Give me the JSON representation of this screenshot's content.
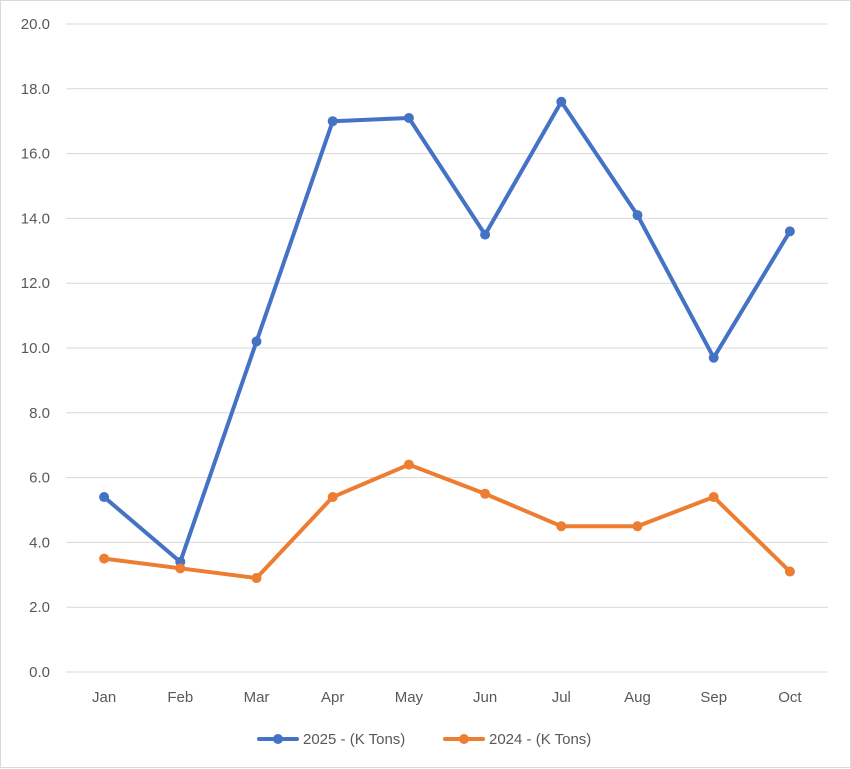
{
  "chart_data": {
    "type": "line",
    "title": "",
    "xlabel": "",
    "ylabel": "",
    "categories": [
      "Jan",
      "Feb",
      "Mar",
      "Apr",
      "May",
      "Jun",
      "Jul",
      "Aug",
      "Sep",
      "Oct"
    ],
    "series": [
      {
        "name": "2025 - (K Tons)",
        "color": "#4472c4",
        "values": [
          5.4,
          3.4,
          10.2,
          17.0,
          17.1,
          13.5,
          17.6,
          14.1,
          9.7,
          13.6
        ]
      },
      {
        "name": "2024 - (K Tons)",
        "color": "#ed7d31",
        "values": [
          3.5,
          3.2,
          2.9,
          5.4,
          6.4,
          5.5,
          4.5,
          4.5,
          5.4,
          3.1
        ]
      }
    ],
    "ylim": [
      0,
      20
    ],
    "y_ticks": [
      "0.0",
      "2.0",
      "4.0",
      "6.0",
      "8.0",
      "10.0",
      "12.0",
      "14.0",
      "16.0",
      "18.0",
      "20.0"
    ],
    "grid": "horizontal",
    "legend": "bottom"
  }
}
